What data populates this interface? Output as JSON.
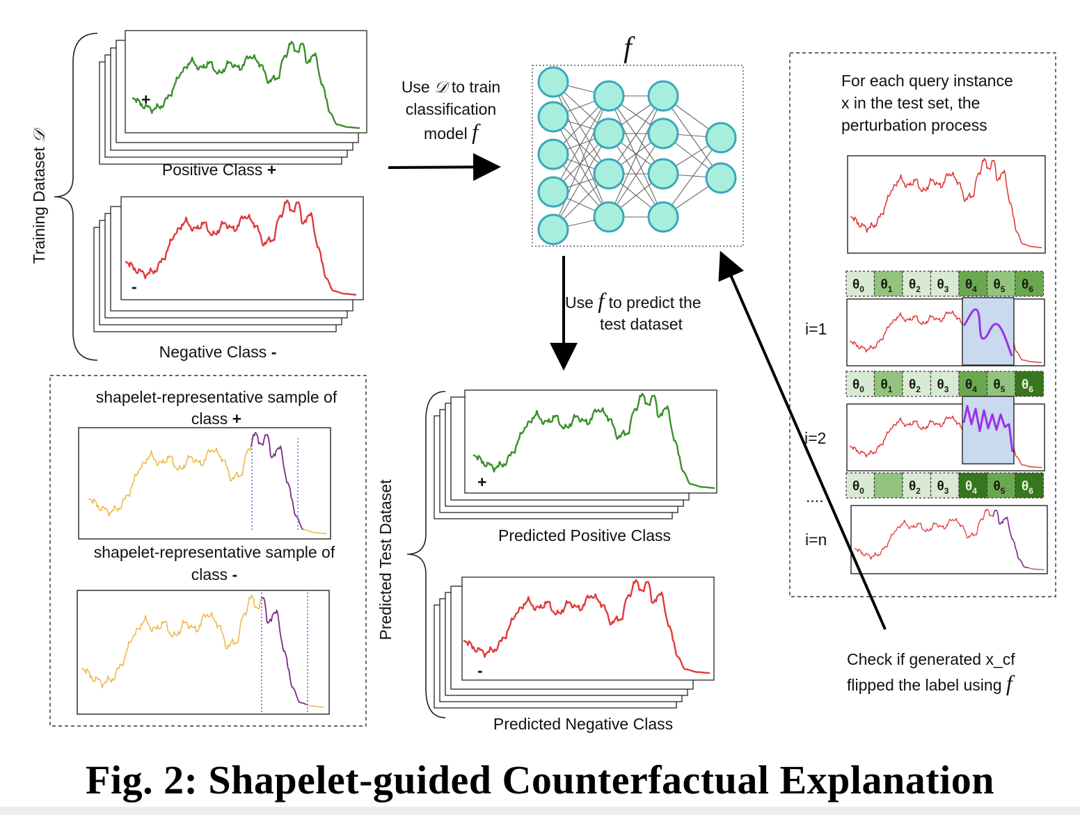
{
  "training": {
    "dataset_label": "Training Dataset",
    "dataset_symbol": "𝒟",
    "positive_label": "Positive Class",
    "positive_sign": "+",
    "negative_label": "Negative Class",
    "negative_sign": "-"
  },
  "train_step": {
    "line1_pre": "Use",
    "line1_symbol": "𝒟",
    "line1_post": "to train",
    "line2": "classification",
    "line3": "model",
    "model_symbol": "f"
  },
  "model": {
    "label": "f"
  },
  "predict_step": {
    "line1_pre": "Use",
    "line1_symbol": "f",
    "line1_post": "to predict the",
    "line2": "test dataset"
  },
  "predicted": {
    "dataset_label": "Predicted Test  Dataset",
    "positive_label": "Predicted Positive Class",
    "positive_sign": "+",
    "negative_label": "Predicted Negative Class",
    "negative_sign": "-"
  },
  "shapelets": {
    "positive_line1": "shapelet-representative sample of",
    "positive_line2": "class",
    "positive_sign": "+",
    "negative_line1": "shapelet-representative sample of",
    "negative_line2": "class",
    "negative_sign": "-"
  },
  "perturbation": {
    "line1": "For each query instance",
    "line2": "x in the test set, the",
    "line3": "perturbation process",
    "iterations": [
      {
        "label": "i=1",
        "segments": [
          "θ0",
          "θ1",
          "θ2",
          "θ3",
          "θ4",
          "θ5",
          "θ6"
        ]
      },
      {
        "label": "i=2",
        "segments": [
          "θ0",
          "θ1",
          "θ2",
          "θ3",
          "θ4",
          "θ5",
          "θ6"
        ]
      },
      {
        "label": "i=n",
        "segments": [
          "θ0",
          "",
          "θ2",
          "θ3",
          "θ4",
          "θ5",
          "θ6"
        ]
      }
    ],
    "ellipsis": "....",
    "segment_shades": [
      [
        "#d9ead3",
        "#93c47d",
        "#d9ead3",
        "#d9ead3",
        "#6aa84f",
        "#93c47d",
        "#6aa84f"
      ],
      [
        "#d9ead3",
        "#93c47d",
        "#d9ead3",
        "#d9ead3",
        "#6aa84f",
        "#93c47d",
        "#38761d"
      ],
      [
        "#d9ead3",
        "#93c47d",
        "#d9ead3",
        "#d9ead3",
        "#38761d",
        "#6aa84f",
        "#38761d"
      ]
    ]
  },
  "check_step": {
    "line1": "Check if generated x_cf",
    "line2": "flipped the label using",
    "symbol": "f"
  },
  "caption": "Fig. 2: Shapelet-guided Counterfactual Explanation",
  "colors": {
    "positive": "#3a8f2a",
    "negative": "#e03a3a",
    "shapelet_base": "#f0b94a",
    "shapelet": "#7b2d8e",
    "perturbed": "#9b30e8",
    "node_fill": "#a8eedd",
    "node_stroke": "#3aa7bd",
    "highlight": "#c9d9ee"
  }
}
